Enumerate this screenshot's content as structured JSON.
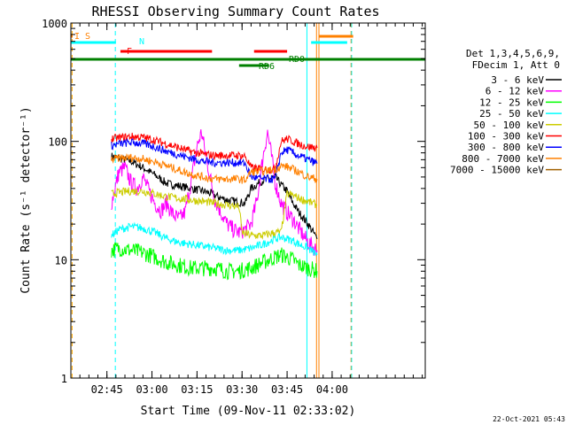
{
  "chart_data": {
    "type": "line",
    "title": "RHESSI Observing Summary Count Rates",
    "xlabel": "Start Time (09-Nov-11 02:33:02)",
    "ylabel": "Count Rate (s⁻¹ detector⁻¹)",
    "yscale": "log",
    "ylim": [
      1,
      1000
    ],
    "xlim_minutes": [
      0,
      118
    ],
    "x_ticks": [
      {
        "m": 12,
        "label": "02:45"
      },
      {
        "m": 27,
        "label": "03:00"
      },
      {
        "m": 42,
        "label": "03:15"
      },
      {
        "m": 57,
        "label": "03:30"
      },
      {
        "m": 72,
        "label": "03:45"
      },
      {
        "m": 87,
        "label": "04:00"
      }
    ],
    "y_ticks": [
      {
        "v": 1,
        "label": "1"
      },
      {
        "v": 10,
        "label": "10"
      },
      {
        "v": 100,
        "label": "100"
      },
      {
        "v": 1000,
        "label": "1000"
      }
    ],
    "legend_header": [
      "Det 1,3,4,5,6,9,",
      "FDecim 1, Att 0"
    ],
    "legend_placement": "right",
    "series": [
      {
        "name": "3 - 6 keV",
        "color": "#000000",
        "x": [
          13.5,
          16,
          20,
          24,
          28,
          32,
          36,
          40,
          44,
          47,
          49,
          52,
          55,
          58,
          60,
          64,
          68,
          70,
          72,
          74,
          76,
          79,
          82
        ],
        "y": [
          75,
          72,
          68,
          60,
          52,
          44,
          42,
          40,
          38,
          36,
          34,
          32,
          31,
          30,
          40,
          47,
          50,
          43,
          38,
          30,
          25,
          20,
          15
        ]
      },
      {
        "name": "6 - 12 keV",
        "color": "#ff00ff",
        "x": [
          13.5,
          16,
          18,
          20,
          22,
          24,
          26,
          28,
          30,
          32,
          34,
          36,
          38,
          40,
          42,
          43.5,
          45,
          46,
          48,
          50,
          52,
          54,
          56,
          58,
          60,
          62,
          64,
          65.5,
          67,
          68,
          70,
          72,
          74,
          76,
          79,
          82
        ],
        "y": [
          30,
          55,
          60,
          45,
          40,
          50,
          38,
          30,
          26,
          30,
          24,
          22,
          25,
          45,
          90,
          120,
          75,
          55,
          32,
          25,
          20,
          18,
          17,
          18,
          20,
          32,
          75,
          120,
          70,
          45,
          30,
          25,
          22,
          18,
          14,
          12
        ]
      },
      {
        "name": "12 - 25 keV",
        "color": "#00ff00",
        "x": [
          13.5,
          16,
          20,
          24,
          28,
          32,
          36,
          40,
          44,
          48,
          52,
          56,
          60,
          64,
          68,
          70,
          72,
          74,
          76,
          79,
          82
        ],
        "y": [
          12,
          12.5,
          12,
          11.5,
          10.5,
          9.5,
          9,
          8.5,
          8.5,
          8.5,
          8,
          8,
          8.5,
          9.5,
          10.5,
          11,
          10.5,
          10,
          9,
          8.5,
          8
        ]
      },
      {
        "name": "25 - 50 keV",
        "color": "#00ffff",
        "x": [
          13.5,
          16,
          20,
          24,
          28,
          32,
          36,
          40,
          44,
          48,
          52,
          56,
          60,
          64,
          68,
          70,
          72,
          74,
          76,
          79,
          82
        ],
        "y": [
          16,
          18,
          19,
          18.5,
          17,
          15,
          14,
          13.5,
          13,
          12.5,
          12,
          12,
          12.5,
          13.5,
          15,
          15.5,
          15,
          14.5,
          13.5,
          12.5,
          11
        ]
      },
      {
        "name": "50 - 100 keV",
        "color": "#cccc00",
        "x": [
          13.5,
          16,
          20,
          24,
          28,
          32,
          36,
          40,
          44,
          48,
          52,
          56,
          57,
          60,
          64,
          68,
          70,
          72,
          74,
          76,
          79,
          82
        ],
        "y": [
          36,
          37,
          38,
          38,
          36,
          34,
          33,
          32,
          31,
          30,
          29,
          28,
          17,
          16,
          16,
          17,
          17,
          36,
          35,
          33,
          31,
          29
        ]
      },
      {
        "name": "100 - 300 keV",
        "color": "#ff0000",
        "x": [
          13.5,
          16,
          20,
          24,
          28,
          32,
          36,
          40,
          44,
          48,
          52,
          56,
          58,
          60,
          64,
          68,
          70,
          72,
          74,
          76,
          79,
          82
        ],
        "y": [
          105,
          107,
          110,
          108,
          102,
          95,
          88,
          82,
          78,
          76,
          76,
          76,
          75,
          60,
          58,
          58,
          100,
          105,
          100,
          95,
          90,
          88
        ]
      },
      {
        "name": "300 - 800 keV",
        "color": "#0000ff",
        "x": [
          13.5,
          16,
          20,
          24,
          28,
          32,
          36,
          40,
          44,
          48,
          52,
          56,
          58,
          60,
          64,
          68,
          70,
          72,
          74,
          76,
          79,
          82
        ],
        "y": [
          92,
          95,
          98,
          96,
          90,
          82,
          77,
          72,
          68,
          66,
          66,
          66,
          65,
          50,
          48,
          48,
          80,
          85,
          80,
          75,
          70,
          65
        ]
      },
      {
        "name": "800 - 7000 keV",
        "color": "#ff8000",
        "x": [
          13.5,
          16,
          20,
          24,
          28,
          32,
          36,
          40,
          44,
          48,
          52,
          56,
          58,
          60,
          64,
          68,
          70,
          72,
          74,
          76,
          79,
          82
        ],
        "y": [
          70,
          72,
          73,
          71,
          67,
          62,
          57,
          53,
          50,
          48,
          48,
          48,
          47,
          55,
          56,
          58,
          62,
          61,
          58,
          55,
          50,
          48
        ]
      },
      {
        "name": "7000 - 15000 keV",
        "color": "#a06000",
        "x": [],
        "y": []
      }
    ],
    "state_bars": [
      {
        "label": "I S",
        "color": "#ff8000",
        "segments": [
          [
            0,
            0.6
          ]
        ]
      },
      {
        "label": "N",
        "color": "#00ffff",
        "segments": [
          [
            0,
            15
          ],
          [
            80,
            92
          ]
        ]
      },
      {
        "label": "F",
        "color": "#ff0000",
        "segments": [
          [
            16.5,
            47
          ],
          [
            61,
            72
          ]
        ]
      },
      {
        "label": "RD0",
        "color": "#008000",
        "segments": [
          [
            0,
            118
          ]
        ]
      },
      {
        "label": "RD6",
        "color": "#008000",
        "segments": [
          [
            56,
            66
          ]
        ]
      }
    ],
    "orange_bar": {
      "color": "#ff8000",
      "segments": [
        [
          82.5,
          94
        ]
      ]
    },
    "vlines": [
      {
        "m": 0.4,
        "color": "#ffaa00",
        "dashed": true
      },
      {
        "m": 14.8,
        "color": "#00ffff",
        "dashed": true
      },
      {
        "m": 78.6,
        "color": "#00ffff",
        "dashed": false
      },
      {
        "m": 81.8,
        "color": "#ff8000",
        "dashed": false
      },
      {
        "m": 82.6,
        "color": "#ff8000",
        "dashed": false
      },
      {
        "m": 93.3,
        "color": "#ff8000",
        "dashed": true
      },
      {
        "m": 93.5,
        "color": "#00ffff",
        "dashed": true
      }
    ]
  },
  "footer": {
    "timestamp": "22-Oct-2021 05:43"
  }
}
